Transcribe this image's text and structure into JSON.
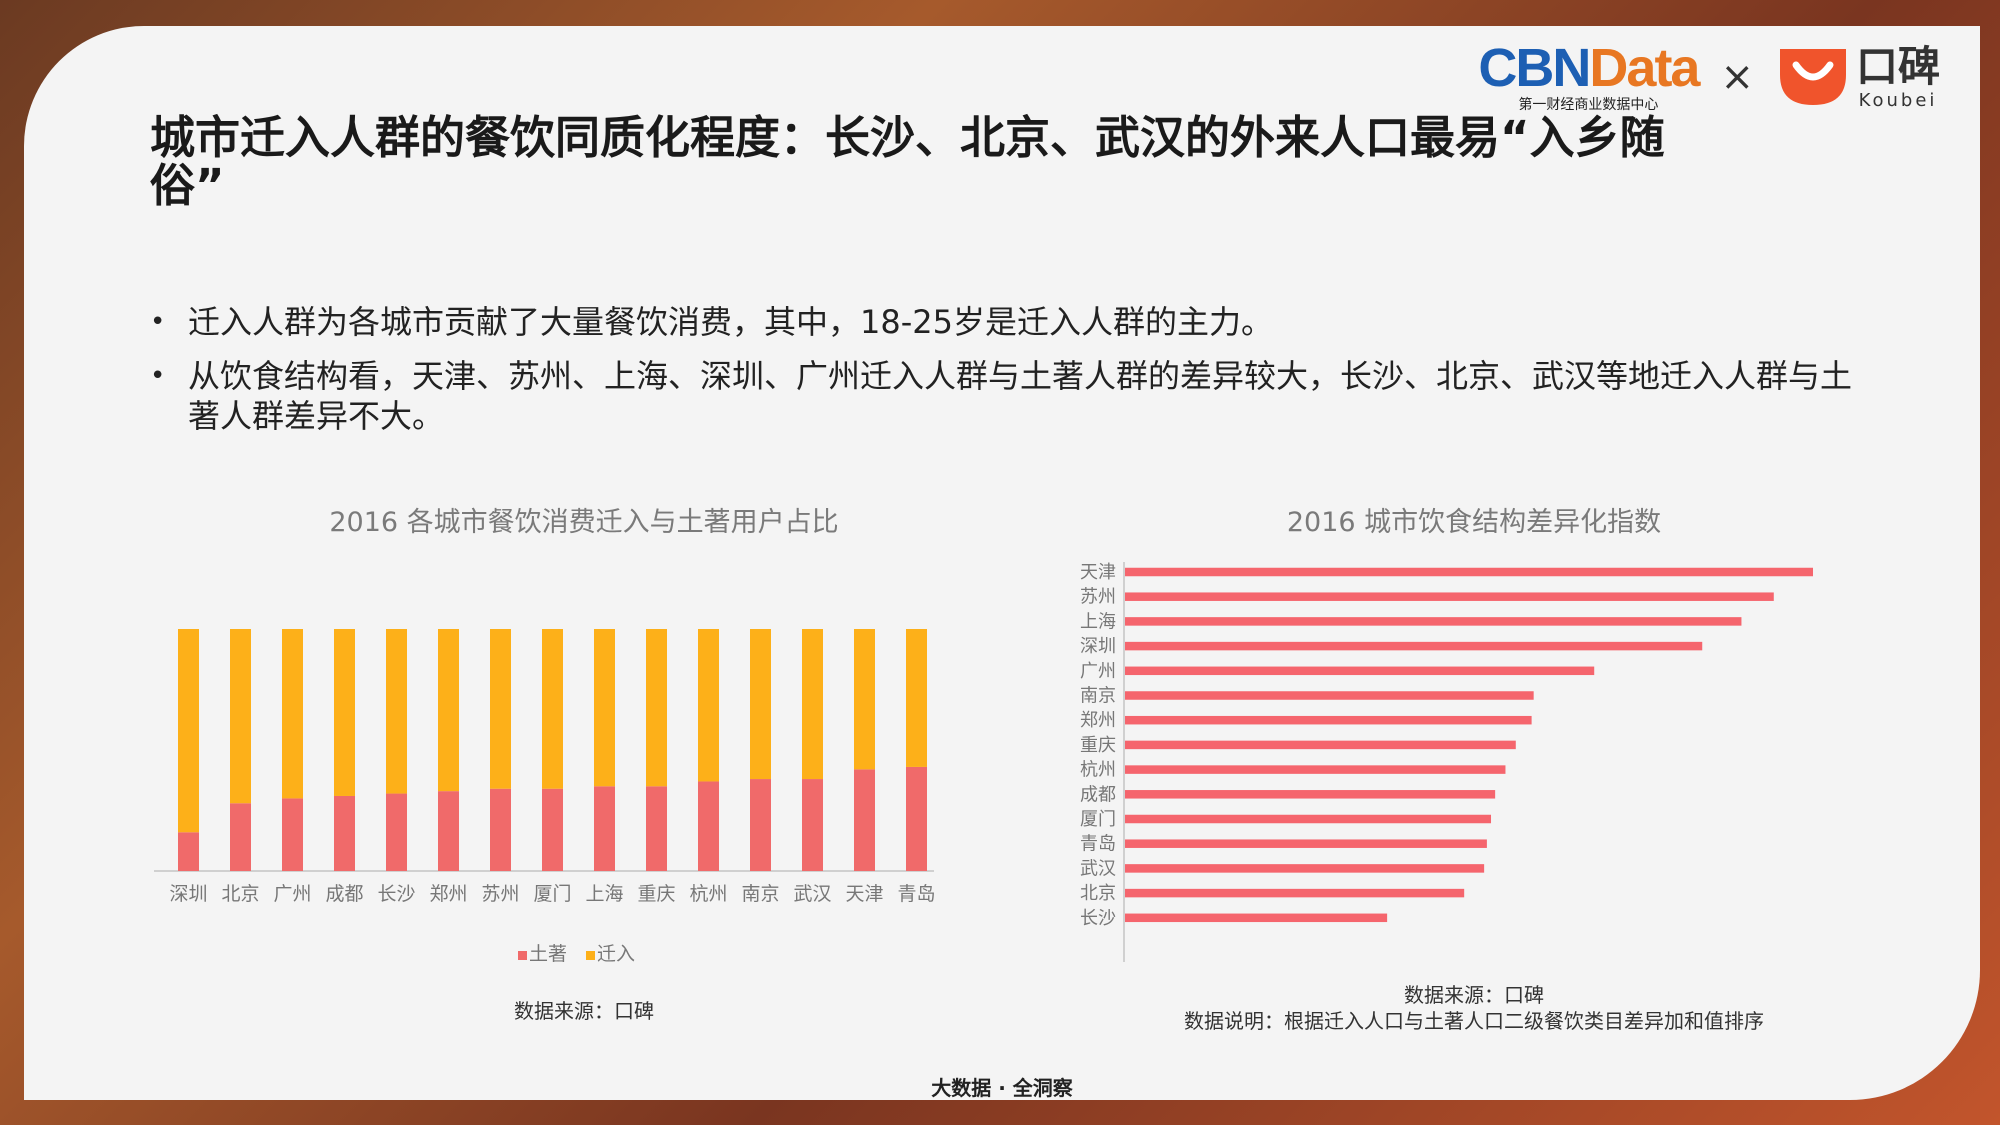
{
  "header": {
    "cbn_part1": "CBN",
    "cbn_part2": "Data",
    "cbn_subtitle": "第一财经商业数据中心",
    "times": "×",
    "koubei_cn": "口碑",
    "koubei_en": "Koubei"
  },
  "title": "城市迁入人群的餐饮同质化程度：长沙、北京、武汉的外来人口最易“入乡随俗”",
  "bullets": [
    "迁入人群为各城市贡献了大量餐饮消费，其中，18-25岁是迁入人群的主力。",
    "从饮食结构看，天津、苏州、上海、深圳、广州迁入人群与土著人群的差异较大，长沙、北京、武汉等地迁入人群与土著人群差异不大。"
  ],
  "bullet_symbol": "•",
  "left_source": "数据来源：口碑",
  "right_source_line1": "数据来源：口碑",
  "right_source_line2": "数据说明：根据迁入人口与土著人口二级餐饮类目差异加和值排序",
  "footer": "大数据 · 全洞察",
  "colors": {
    "native": "#f06a6a",
    "migrant": "#fdb019",
    "bar": "#f5656d"
  },
  "chart_data": [
    {
      "type": "bar",
      "stacked": true,
      "percent_stacked": true,
      "title": "2016 各城市餐饮消费迁入与土著用户占比",
      "categories": [
        "深圳",
        "北京",
        "广州",
        "成都",
        "长沙",
        "郑州",
        "苏州",
        "厦门",
        "上海",
        "重庆",
        "杭州",
        "南京",
        "武汉",
        "天津",
        "青岛"
      ],
      "series": [
        {
          "name": "土著",
          "values": [
            16,
            28,
            30,
            31,
            32,
            33,
            34,
            34,
            35,
            35,
            37,
            38,
            38,
            42,
            43
          ]
        },
        {
          "name": "迁入",
          "values": [
            84,
            72,
            70,
            69,
            68,
            67,
            66,
            66,
            65,
            65,
            63,
            62,
            62,
            58,
            57
          ]
        }
      ],
      "ylim": [
        0,
        100
      ],
      "legend": "bottom"
    },
    {
      "type": "bar",
      "orientation": "horizontal",
      "title": "2016 城市饮食结构差异化指数",
      "categories": [
        "天津",
        "苏州",
        "上海",
        "深圳",
        "广州",
        "南京",
        "郑州",
        "重庆",
        "杭州",
        "成都",
        "厦门",
        "青岛",
        "武汉",
        "北京",
        "长沙"
      ],
      "values": [
        100,
        94.3,
        89.6,
        83.9,
        68.2,
        59.4,
        59.1,
        56.8,
        55.3,
        53.8,
        53.2,
        52.6,
        52.2,
        49.3,
        38.1
      ],
      "xlim": [
        0,
        100
      ]
    }
  ]
}
